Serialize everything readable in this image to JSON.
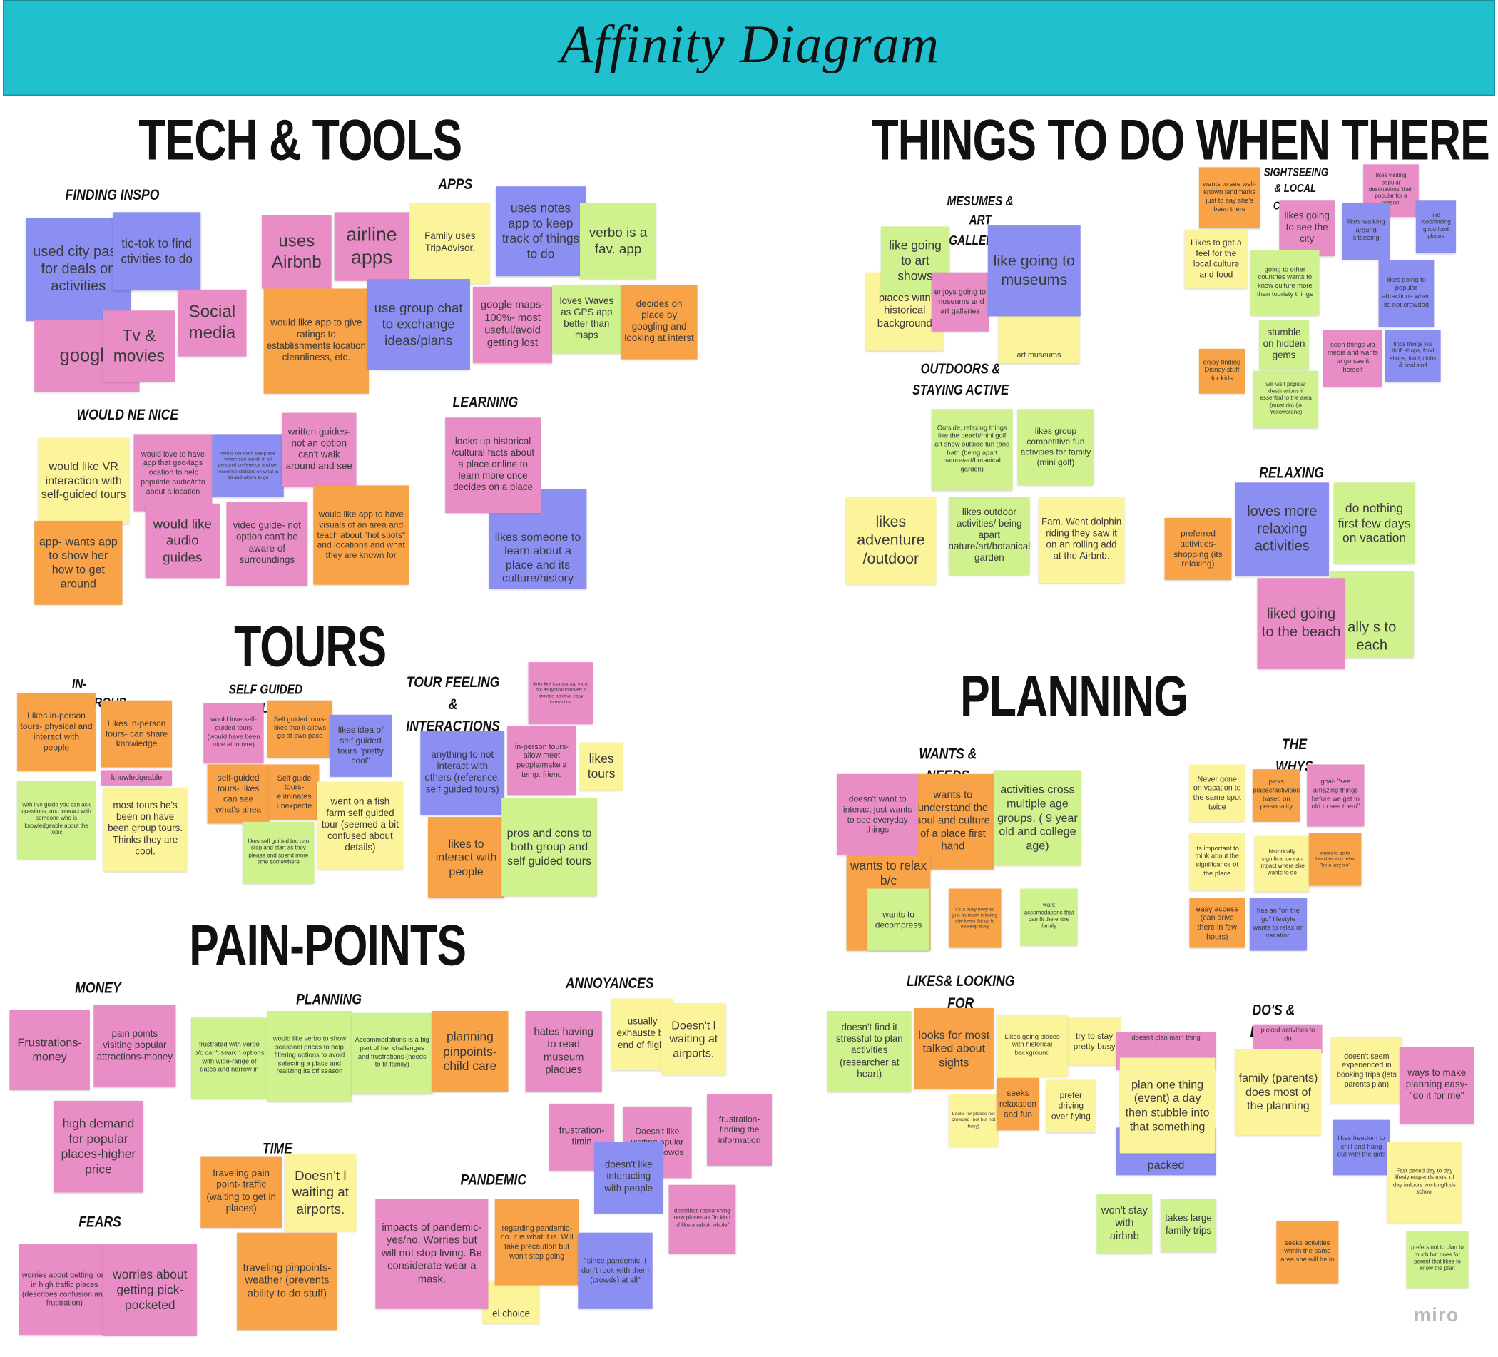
{
  "header": {
    "title": "Affinity Diagram"
  },
  "sections": [
    {
      "title": "TECH & TOOLS",
      "groups": [
        {
          "title": "FINDING INSPO",
          "notes": [
            {
              "text": "used city pass for deals on activities",
              "color": "#8c8ff2"
            },
            {
              "text": "tic-tok to find ctivities to do",
              "color": "#8c8ff2"
            },
            {
              "text": "Social media",
              "color": "#e98dc6"
            },
            {
              "text": "google",
              "color": "#e98dc6"
            },
            {
              "text": "Tv & movies",
              "color": "#e98dc6"
            }
          ]
        },
        {
          "title": "APPS",
          "notes": [
            {
              "text": "uses Airbnb",
              "color": "#e98dc6"
            },
            {
              "text": "airline apps",
              "color": "#e98dc6"
            },
            {
              "text": "Family uses TripAdvisor.",
              "color": "#fcf49b"
            },
            {
              "text": "uses notes app to keep track of things to do",
              "color": "#8c8ff2"
            },
            {
              "text": "verbo is a fav. app",
              "color": "#cff28e"
            },
            {
              "text": "would like app to give ratings to establishments location cleanliness, etc.",
              "color": "#f9a348"
            },
            {
              "text": "use group chat to exchange ideas/plans",
              "color": "#8c8ff2"
            },
            {
              "text": "google maps- 100%- most useful/avoid getting lost",
              "color": "#e98dc6"
            },
            {
              "text": "loves Waves as GPS app better than maps",
              "color": "#cff28e"
            },
            {
              "text": "decides on place by googling and looking at interst",
              "color": "#f9a348"
            }
          ]
        },
        {
          "title": "WOULD NE NICE",
          "notes": [
            {
              "text": "would like VR interaction with self-guided tours",
              "color": "#fcf49b"
            },
            {
              "text": "would love to have app that geo-tags location to help populate audio/info about a location",
              "color": "#e98dc6"
            },
            {
              "text": "would like them see place where can punch in all personal preference and get recommendations on what to do and where to go",
              "color": "#8c8ff2"
            },
            {
              "text": "written guides- not an option can't walk around and see",
              "color": "#e98dc6"
            },
            {
              "text": "app- wants app to show her how to get around",
              "color": "#f9a348"
            },
            {
              "text": "would like audio guides",
              "color": "#e98dc6"
            },
            {
              "text": "video guide- not option can't be aware of surroundings",
              "color": "#e98dc6"
            },
            {
              "text": "would like app to have visuals of an area and teach about \"hot spots\" and locations and what they are known for",
              "color": "#f9a348"
            }
          ]
        },
        {
          "title": "LEARNING",
          "notes": [
            {
              "text": "likes someone to learn about a place and its culture/history",
              "color": "#8c8ff2"
            },
            {
              "text": "looks up historical /cultural facts about a place online to learn more once decides on a place",
              "color": "#e98dc6"
            }
          ]
        }
      ]
    },
    {
      "title": "THINGS TO DO WHEN THERE",
      "groups": [
        {
          "title": "MESUMES & ART GALLERIES",
          "notes": [
            {
              "text": "places with historical background",
              "color": "#fcf49b"
            },
            {
              "text": "art museums",
              "color": "#fcf49b"
            },
            {
              "text": "like going to art shows",
              "color": "#cff28e"
            },
            {
              "text": "enjoys going to museums and art galleries",
              "color": "#e98dc6"
            },
            {
              "text": "like going to museums",
              "color": "#8c8ff2"
            }
          ]
        },
        {
          "title": "SIGHTSEEING & LOCAL CULTURE",
          "notes": [
            {
              "text": "wants to see well-known landmarks just to say she's been there",
              "color": "#f9a348"
            },
            {
              "text": "likes visiting popular destinations 'their popular for a reason'",
              "color": "#e98dc6"
            },
            {
              "text": "likes going to see the city",
              "color": "#e98dc6"
            },
            {
              "text": "likes walking around sitseeing",
              "color": "#8c8ff2"
            },
            {
              "text": "like food/finding good food places",
              "color": "#8c8ff2"
            },
            {
              "text": "Likes to get a feel for the local culture and food",
              "color": "#fcf49b"
            },
            {
              "text": "going to other countries wants to know culture more than touristy things",
              "color": "#cff28e"
            },
            {
              "text": "likes going to popular attractions when its not crowded",
              "color": "#8c8ff2"
            },
            {
              "text": "stumble on hidden gems",
              "color": "#cff28e"
            },
            {
              "text": "enjoy finding Disney stuff for kids",
              "color": "#f9a348"
            },
            {
              "text": "seen things via media and wants to go see it herself",
              "color": "#e98dc6"
            },
            {
              "text": "finds things like thrift shops, food shops, food, clubs & cool stuff",
              "color": "#8c8ff2"
            },
            {
              "text": "will visit popular destinations if essential to the area (must do) (ie Yellowstone)",
              "color": "#cff28e"
            }
          ]
        },
        {
          "title": "OUTDOORS & STAYING ACTIVE",
          "notes": [
            {
              "text": "Outside, relaxing things like the beach/mini golf art show outside fun (and bath (being apart nature/art/botanical garden)",
              "color": "#cff28e"
            },
            {
              "text": "likes group competitive fun activities for family (mini golf)",
              "color": "#cff28e"
            },
            {
              "text": "likes adventure /outdoor",
              "color": "#fcf49b"
            },
            {
              "text": "likes outdoor activities/ being apart nature/art/botanical garden",
              "color": "#cff28e"
            },
            {
              "text": "Fam. Went dolphin riding they saw it on an rolling add at the Airbnb.",
              "color": "#fcf49b"
            }
          ]
        },
        {
          "title": "RELAXING",
          "notes": [
            {
              "text": "preferred activities- shopping (its relaxing)",
              "color": "#f9a348"
            },
            {
              "text": "loves more relaxing activities",
              "color": "#8c8ff2"
            },
            {
              "text": "do nothing first few days on vacation",
              "color": "#cff28e"
            },
            {
              "text": "ally s to each",
              "color": "#cff28e"
            },
            {
              "text": "liked going to the beach",
              "color": "#e98dc6"
            }
          ]
        }
      ]
    },
    {
      "title": "TOURS",
      "groups": [
        {
          "title": "IN-PERSON/GROUP",
          "notes": [
            {
              "text": "Likes in-person tours- physical and interact with people",
              "color": "#f9a348"
            },
            {
              "text": "Likes in-person tours- can share knowledge",
              "color": "#f9a348"
            },
            {
              "text": "knowledgeable",
              "color": "#e98dc6"
            },
            {
              "text": "with live guide you can ask questions, and interact with someone who is knowledgeable about the topic",
              "color": "#cff28e"
            },
            {
              "text": "most tours he's been on have been group tours. Thinks they are cool.",
              "color": "#fcf49b"
            }
          ]
        },
        {
          "title": "SELF GUIDED TOURS",
          "notes": [
            {
              "text": "would love self-guided tours (would have been nice at louvre)",
              "color": "#e98dc6"
            },
            {
              "text": "Self guided tours- likes that it allows go at own pace",
              "color": "#f9a348"
            },
            {
              "text": "likes idea of self guided tours \"pretty cool\"",
              "color": "#8c8ff2"
            },
            {
              "text": "self-guided tours- likes can see what's ahea",
              "color": "#f9a348"
            },
            {
              "text": "Self guide tours- eliminates unexpecte",
              "color": "#f9a348"
            },
            {
              "text": "went on a fish farm self guided tour (seemed a bit confused about details)",
              "color": "#fcf49b"
            },
            {
              "text": "likes self guided b/c can stop and start as they please and spend more time somewhere",
              "color": "#cff28e"
            }
          ]
        },
        {
          "title": "TOUR FEELING & INTERACTIONS",
          "notes": [
            {
              "text": "likes live tours/group tours b/c as typical introvert it provide positive easy interaction",
              "color": "#e98dc6"
            },
            {
              "text": "anything to not interact with others (reference: self guided tours)",
              "color": "#8c8ff2"
            },
            {
              "text": "in-person tours- allow meet people/make a temp. friend",
              "color": "#e98dc6"
            },
            {
              "text": "likes tours",
              "color": "#fcf49b"
            },
            {
              "text": "likes to interact with people",
              "color": "#f9a348"
            },
            {
              "text": "pros and cons to both group and self guided tours",
              "color": "#cff28e"
            }
          ]
        }
      ]
    },
    {
      "title": "PLANNING",
      "groups": [
        {
          "title": "WANTS & NEEDS",
          "notes": [
            {
              "text": "wants to understand the soul and culture of a place first hand",
              "color": "#f9a348"
            },
            {
              "text": "doesn't want to interact just wants to see everyday things",
              "color": "#e98dc6"
            },
            {
              "text": "activities cross multiple age groups. ( 9 year old and college age)",
              "color": "#cff28e"
            },
            {
              "text": "wants to relax b/c",
              "color": "#f9a348"
            },
            {
              "text": "wants to decompress",
              "color": "#cff28e"
            },
            {
              "text": "it's a busy body so just as much relaxing she loves things to do/keep busy",
              "color": "#f9a348"
            },
            {
              "text": "want accomodations that can fit the entire family",
              "color": "#cff28e"
            }
          ]
        },
        {
          "title": "THE WHYS",
          "notes": [
            {
              "text": "Never gone on vacation to the same spot twice",
              "color": "#fcf49b"
            },
            {
              "text": "picks places/activities based on personality",
              "color": "#f9a348"
            },
            {
              "text": "goal- \"see amazing things before we get to old to see them\"",
              "color": "#e98dc6"
            },
            {
              "text": "its important to think about the significance of the place",
              "color": "#fcf49b"
            },
            {
              "text": "historically significance can impact where she wants to go",
              "color": "#fcf49b"
            },
            {
              "text": "wants to go to beaches and relax \"be a lazy slo\"",
              "color": "#f9a348"
            },
            {
              "text": "easy access (can drive there in few hours)",
              "color": "#f9a348"
            },
            {
              "text": "has an \"on the go\" lifestyle wants to relax on vacation",
              "color": "#8c8ff2"
            }
          ]
        },
        {
          "title": "LIKES& LOOKING FOR",
          "notes": [
            {
              "text": "doesn't find it stressful to plan activities (researcher at heart)",
              "color": "#cff28e"
            },
            {
              "text": "looks for most talked about sights",
              "color": "#f9a348"
            },
            {
              "text": "Likes going places with historical background",
              "color": "#fcf49b"
            },
            {
              "text": "try to stay pretty busy",
              "color": "#fcf49b"
            },
            {
              "text": "Looks for places not crowded (not but not busy)",
              "color": "#fcf49b"
            },
            {
              "text": "seeks relaxation and fun",
              "color": "#f9a348"
            },
            {
              "text": "prefer driving over flying",
              "color": "#fcf49b"
            }
          ]
        },
        {
          "title": "DO'S & DON'TS",
          "notes": [
            {
              "text": "doesn't plan main thing",
              "color": "#e98dc6"
            },
            {
              "text": "packed",
              "color": "#8c8ff2"
            },
            {
              "text": "plan one thing (event) a day then stubble into that something",
              "color": "#fcf49b"
            },
            {
              "text": "picked activities to do",
              "color": "#e98dc6"
            },
            {
              "text": "family (parents) does most of the planning",
              "color": "#fcf49b"
            },
            {
              "text": "doesn't seem experienced in booking trips (lets parents plan)",
              "color": "#fcf49b"
            },
            {
              "text": "ways to make planning easy- \"do it for me\"",
              "color": "#e98dc6"
            },
            {
              "text": "likes freedom to chill and hang out with the girls",
              "color": "#8c8ff2"
            },
            {
              "text": "Fast paced day to day lifestyle/spends most of day indoors working/kids school",
              "color": "#fcf49b"
            },
            {
              "text": "won't stay with airbnb",
              "color": "#cff28e"
            },
            {
              "text": "takes large family trips",
              "color": "#cff28e"
            },
            {
              "text": "seeks activities within the same area she will be in",
              "color": "#f9a348"
            },
            {
              "text": "prefers not to plan to much but does for parent that likes to know the plan",
              "color": "#cff28e"
            }
          ]
        }
      ]
    },
    {
      "title": "PAIN-POINTS",
      "groups": [
        {
          "title": "MONEY",
          "notes": [
            {
              "text": "Frustrations-money",
              "color": "#e98dc6"
            },
            {
              "text": "pain points visiting popular attractions-money",
              "color": "#e98dc6"
            },
            {
              "text": "high demand for popular places-higher price",
              "color": "#e98dc6"
            }
          ]
        },
        {
          "title": "PLANNING PAINS",
          "notes": [
            {
              "text": "frustrated with verbo b/c can't search options with wide-range of dates and narrow in",
              "color": "#cff28e"
            },
            {
              "text": "would like verbo to show seasonal prices to help filtering options to avoid selecting a place and realizing its off season",
              "color": "#cff28e"
            },
            {
              "text": "Accommodations is a big part of her challenges and frustrations (needs to fit family)",
              "color": "#cff28e"
            },
            {
              "text": "planning pinpoints-child care",
              "color": "#f9a348"
            }
          ]
        },
        {
          "title": "ANNOYANCES",
          "notes": [
            {
              "text": "hates having to read museum plaques",
              "color": "#e98dc6"
            },
            {
              "text": "usually exhauste by end of flight",
              "color": "#fcf49b"
            },
            {
              "text": "Doesn't l waiting at airports.",
              "color": "#fcf49b"
            },
            {
              "text": "frustration- timin",
              "color": "#e98dc6"
            },
            {
              "text": "Doesn't like visiting opular ations crowds",
              "color": "#e98dc6"
            },
            {
              "text": "frustration- finding the information",
              "color": "#e98dc6"
            },
            {
              "text": "doesn't like interacting with people",
              "color": "#8c8ff2"
            },
            {
              "text": "describes researching new places as \"in kind of like a rabbit whole\"",
              "color": "#e98dc6"
            }
          ]
        },
        {
          "title": "TIME",
          "notes": [
            {
              "text": "traveling pain point- traffic (waiting to get in places)",
              "color": "#f9a348"
            },
            {
              "text": "Doesn't l waiting at airports.",
              "color": "#fcf49b"
            },
            {
              "text": "traveling pinpoints-weather (prevents ability to do stuff)",
              "color": "#f9a348"
            }
          ]
        },
        {
          "title": "PANDEMIC",
          "notes": [
            {
              "text": "el choice",
              "color": "#fcf49b"
            },
            {
              "text": "impacts of pandemic- yes/no. Worries but will not stop living. Be considerate wear a mask.",
              "color": "#e98dc6"
            },
            {
              "text": "regarding pandemic- no. it is what it is. Will take precaution but won't stop going",
              "color": "#f9a348"
            },
            {
              "text": "\"since pandemic, I don't rock with them (crowds) at all\"",
              "color": "#8c8ff2"
            }
          ]
        },
        {
          "title": "FEARS",
          "notes": [
            {
              "text": "worries about getting lost in high traffic places (describes confusion and frustration)",
              "color": "#e98dc6"
            },
            {
              "text": "worries about getting pick-pocketed",
              "color": "#e98dc6"
            }
          ]
        }
      ]
    }
  ],
  "watermark": "miro"
}
